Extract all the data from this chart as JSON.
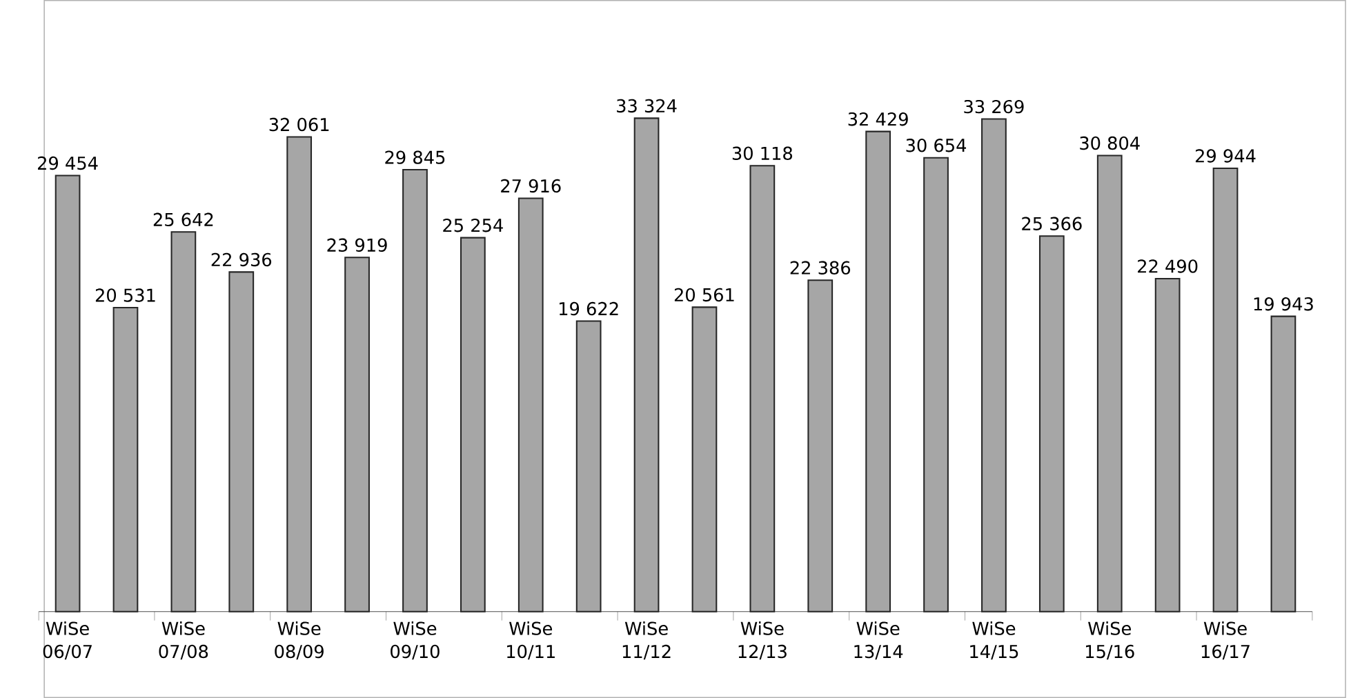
{
  "chart_data": {
    "type": "bar",
    "categories": [
      "WiSe 06/07",
      null,
      "WiSe 07/08",
      null,
      "WiSe 08/09",
      null,
      "WiSe 09/10",
      null,
      "WiSe 10/11",
      null,
      "WiSe 11/12",
      null,
      "WiSe 12/13",
      null,
      "WiSe 13/14",
      null,
      "WiSe 14/15",
      null,
      "WiSe 15/16",
      null,
      "WiSe 16/17",
      null
    ],
    "values": [
      29454,
      20531,
      25642,
      22936,
      32061,
      23919,
      29845,
      25254,
      27916,
      19622,
      33324,
      20561,
      30118,
      22386,
      32429,
      30654,
      33269,
      25366,
      30804,
      22490,
      29944,
      19943
    ],
    "value_labels": [
      "29 454",
      "20 531",
      "25 642",
      "22 936",
      "32 061",
      "23 919",
      "29 845",
      "25 254",
      "27 916",
      "19 622",
      "33 324",
      "20 561",
      "30 118",
      "22 386",
      "32 429",
      "30 654",
      "33 269",
      "25 366",
      "30 804",
      "22 490",
      "29 944",
      "19 943"
    ],
    "color": "#a6a6a6"
  }
}
